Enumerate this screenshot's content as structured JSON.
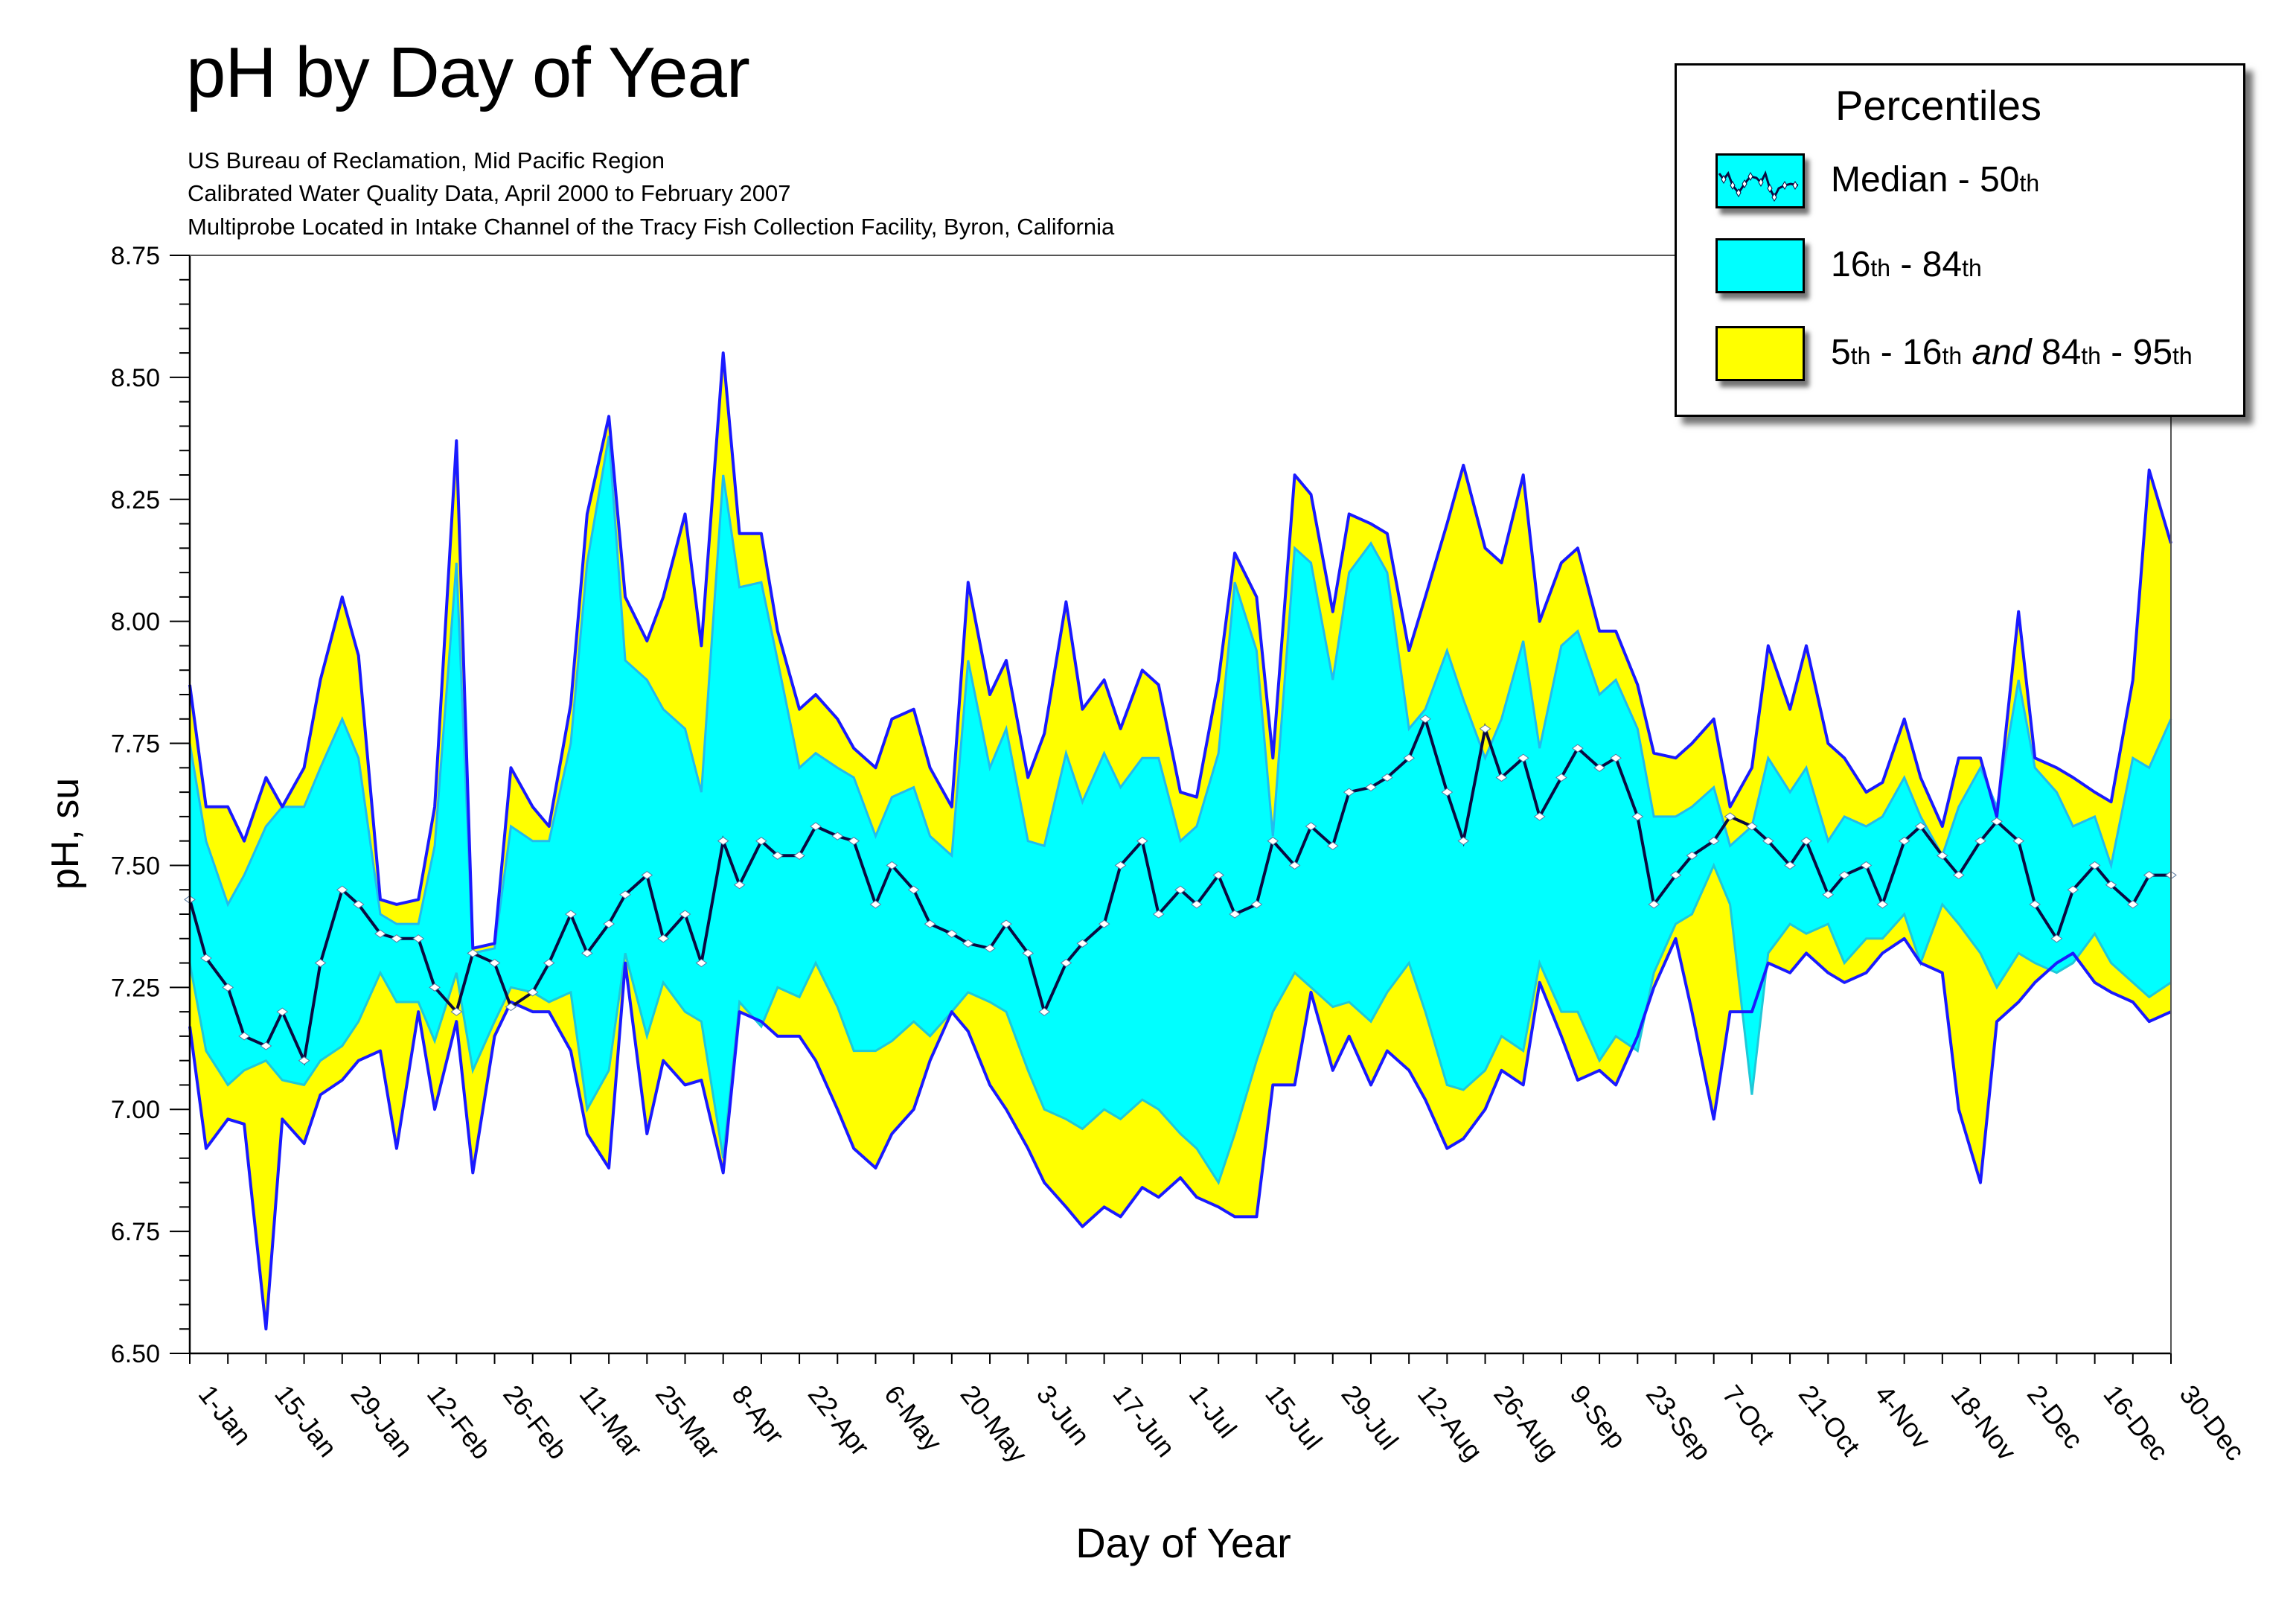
{
  "header": {
    "title": "pH by Day of Year",
    "subtitles": [
      "US Bureau of Reclamation, Mid Pacific Region",
      "Calibrated Water Quality Data, April 2000 to February 2007",
      "Multiprobe Located in Intake Channel of the Tracy Fish Collection Facility, Byron, California"
    ]
  },
  "legend": {
    "title": "Percentiles",
    "items": [
      {
        "name": "median",
        "label_parts": [
          "Median - 50",
          "th"
        ],
        "swatch": "median-line-on-cyan"
      },
      {
        "name": "band-16-84",
        "label_parts": [
          "16",
          "th",
          " - 84",
          "th"
        ],
        "swatch": "cyan"
      },
      {
        "name": "band-5-95",
        "label_parts": [
          "5",
          "th",
          " - 16",
          "th",
          " and ",
          "84",
          "th",
          " - 95",
          "th"
        ],
        "swatch": "yellow"
      }
    ]
  },
  "colors": {
    "band_inner": "#00ffff",
    "band_outer": "#ffff00",
    "band_inner_edge": "#22bbee",
    "outline": "#1a1aff",
    "median_line": "#0a0a40",
    "median_marker": "#ffffff",
    "axis": "#000000"
  },
  "chart_data": {
    "type": "area",
    "title": "pH by Day of Year",
    "xlabel": "Day of Year",
    "ylabel": "pH, su",
    "ylim": [
      6.5,
      8.75
    ],
    "xlim": [
      1,
      365
    ],
    "yticks": [
      6.5,
      6.75,
      7.0,
      7.25,
      7.5,
      7.75,
      8.0,
      8.25,
      8.5,
      8.75
    ],
    "ytick_labels": [
      "6.50",
      "6.75",
      "7.00",
      "7.25",
      "7.50",
      "7.75",
      "8.00",
      "8.25",
      "8.50",
      "8.75"
    ],
    "y_minor_step": 0.05,
    "xticks": [
      1,
      15,
      29,
      43,
      57,
      71,
      85,
      99,
      113,
      127,
      141,
      155,
      169,
      183,
      197,
      211,
      225,
      239,
      253,
      267,
      281,
      295,
      309,
      323,
      337,
      351,
      365
    ],
    "xtick_labels": [
      "1-Jan",
      "15-Jan",
      "29-Jan",
      "12-Feb",
      "26-Feb",
      "11-Mar",
      "25-Mar",
      "8-Apr",
      "22-Apr",
      "6-May",
      "20-May",
      "3-Jun",
      "17-Jun",
      "1-Jul",
      "15-Jul",
      "29-Jul",
      "12-Aug",
      "26-Aug",
      "9-Sep",
      "23-Sep",
      "7-Oct",
      "21-Oct",
      "4-Nov",
      "18-Nov",
      "2-Dec",
      "16-Dec",
      "30-Dec"
    ],
    "x_minor_step": 7,
    "grid": false,
    "legend_position": "top-right",
    "x": [
      1,
      4,
      8,
      11,
      15,
      18,
      22,
      25,
      29,
      32,
      36,
      39,
      43,
      46,
      50,
      53,
      57,
      60,
      64,
      67,
      71,
      74,
      78,
      81,
      85,
      88,
      92,
      95,
      99,
      102,
      106,
      109,
      113,
      116,
      120,
      123,
      127,
      130,
      134,
      137,
      141,
      144,
      148,
      151,
      155,
      158,
      162,
      165,
      169,
      172,
      176,
      179,
      183,
      186,
      190,
      193,
      197,
      200,
      204,
      207,
      211,
      214,
      218,
      221,
      225,
      228,
      232,
      235,
      239,
      242,
      246,
      249,
      253,
      256,
      260,
      263,
      267,
      270,
      274,
      277,
      281,
      284,
      288,
      291,
      295,
      298,
      302,
      305,
      309,
      312,
      316,
      319,
      323,
      326,
      330,
      333,
      337,
      340,
      344,
      347,
      351,
      354,
      358,
      361,
      365
    ],
    "series": [
      {
        "name": "95th percentile",
        "values": [
          7.87,
          7.62,
          7.62,
          7.55,
          7.68,
          7.62,
          7.7,
          7.88,
          8.05,
          7.93,
          7.43,
          7.42,
          7.43,
          7.62,
          8.37,
          7.33,
          7.34,
          7.7,
          7.62,
          7.58,
          7.83,
          8.22,
          8.42,
          8.05,
          7.96,
          8.05,
          8.22,
          7.95,
          8.55,
          8.18,
          8.18,
          7.98,
          7.82,
          7.85,
          7.8,
          7.74,
          7.7,
          7.8,
          7.82,
          7.7,
          7.62,
          8.08,
          7.85,
          7.92,
          7.68,
          7.77,
          8.04,
          7.82,
          7.88,
          7.78,
          7.9,
          7.87,
          7.65,
          7.64,
          7.88,
          8.14,
          8.05,
          7.72,
          8.3,
          8.26,
          8.02,
          8.22,
          8.2,
          8.18,
          7.94,
          8.05,
          8.2,
          8.32,
          8.15,
          8.12,
          8.3,
          8.0,
          8.12,
          8.15,
          7.98,
          7.98,
          7.87,
          7.73,
          7.72,
          7.75,
          7.8,
          7.62,
          7.7,
          7.95,
          7.82,
          7.95,
          7.75,
          7.72,
          7.65,
          7.67,
          7.8,
          7.68,
          7.58,
          7.72,
          7.72,
          7.6,
          8.02,
          7.72,
          7.7,
          7.68,
          7.65,
          7.63,
          7.88,
          8.31,
          8.16
        ]
      },
      {
        "name": "84th percentile",
        "values": [
          7.75,
          7.55,
          7.42,
          7.48,
          7.58,
          7.62,
          7.62,
          7.7,
          7.8,
          7.72,
          7.4,
          7.38,
          7.38,
          7.54,
          8.12,
          7.32,
          7.33,
          7.58,
          7.55,
          7.55,
          7.75,
          8.12,
          8.38,
          7.92,
          7.88,
          7.82,
          7.78,
          7.65,
          8.3,
          8.07,
          8.08,
          7.92,
          7.7,
          7.73,
          7.7,
          7.68,
          7.56,
          7.64,
          7.66,
          7.56,
          7.52,
          7.92,
          7.7,
          7.78,
          7.55,
          7.54,
          7.73,
          7.63,
          7.73,
          7.66,
          7.72,
          7.72,
          7.55,
          7.58,
          7.73,
          8.08,
          7.94,
          7.56,
          8.15,
          8.12,
          7.88,
          8.1,
          8.16,
          8.1,
          7.78,
          7.82,
          7.94,
          7.84,
          7.72,
          7.8,
          7.96,
          7.74,
          7.95,
          7.98,
          7.85,
          7.88,
          7.78,
          7.6,
          7.6,
          7.62,
          7.66,
          7.54,
          7.58,
          7.72,
          7.65,
          7.7,
          7.55,
          7.6,
          7.58,
          7.6,
          7.68,
          7.6,
          7.52,
          7.62,
          7.7,
          7.62,
          7.88,
          7.7,
          7.65,
          7.58,
          7.6,
          7.5,
          7.72,
          7.7,
          7.8
        ]
      },
      {
        "name": "Median - 50th percentile",
        "values": [
          7.43,
          7.31,
          7.25,
          7.15,
          7.13,
          7.2,
          7.1,
          7.3,
          7.45,
          7.42,
          7.36,
          7.35,
          7.35,
          7.25,
          7.2,
          7.32,
          7.3,
          7.21,
          7.24,
          7.3,
          7.4,
          7.32,
          7.38,
          7.44,
          7.48,
          7.35,
          7.4,
          7.3,
          7.55,
          7.46,
          7.55,
          7.52,
          7.52,
          7.58,
          7.56,
          7.55,
          7.42,
          7.5,
          7.45,
          7.38,
          7.36,
          7.34,
          7.33,
          7.38,
          7.32,
          7.2,
          7.3,
          7.34,
          7.38,
          7.5,
          7.55,
          7.4,
          7.45,
          7.42,
          7.48,
          7.4,
          7.42,
          7.55,
          7.5,
          7.58,
          7.54,
          7.65,
          7.66,
          7.68,
          7.72,
          7.8,
          7.65,
          7.55,
          7.78,
          7.68,
          7.72,
          7.6,
          7.68,
          7.74,
          7.7,
          7.72,
          7.6,
          7.42,
          7.48,
          7.52,
          7.55,
          7.6,
          7.58,
          7.55,
          7.5,
          7.55,
          7.44,
          7.48,
          7.5,
          7.42,
          7.55,
          7.58,
          7.52,
          7.48,
          7.55,
          7.59,
          7.55,
          7.42,
          7.35,
          7.45,
          7.5,
          7.46,
          7.42,
          7.48,
          7.48
        ]
      },
      {
        "name": "16th percentile",
        "values": [
          7.3,
          7.12,
          7.05,
          7.08,
          7.1,
          7.06,
          7.05,
          7.1,
          7.13,
          7.18,
          7.28,
          7.22,
          7.22,
          7.14,
          7.28,
          7.08,
          7.18,
          7.25,
          7.24,
          7.22,
          7.24,
          7.0,
          7.08,
          7.32,
          7.15,
          7.26,
          7.2,
          7.18,
          6.9,
          7.22,
          7.17,
          7.25,
          7.23,
          7.3,
          7.21,
          7.12,
          7.12,
          7.14,
          7.18,
          7.15,
          7.2,
          7.24,
          7.22,
          7.2,
          7.08,
          7.0,
          6.98,
          6.96,
          7.0,
          6.98,
          7.02,
          7.0,
          6.95,
          6.92,
          6.85,
          6.95,
          7.1,
          7.2,
          7.28,
          7.25,
          7.21,
          7.22,
          7.18,
          7.24,
          7.3,
          7.2,
          7.05,
          7.04,
          7.08,
          7.15,
          7.12,
          7.3,
          7.2,
          7.2,
          7.1,
          7.15,
          7.12,
          7.28,
          7.38,
          7.4,
          7.5,
          7.42,
          7.03,
          7.32,
          7.38,
          7.36,
          7.38,
          7.3,
          7.35,
          7.35,
          7.4,
          7.3,
          7.42,
          7.38,
          7.32,
          7.25,
          7.32,
          7.3,
          7.28,
          7.3,
          7.36,
          7.3,
          7.26,
          7.23,
          7.26
        ]
      },
      {
        "name": "5th percentile",
        "values": [
          7.17,
          6.92,
          6.98,
          6.97,
          6.55,
          6.98,
          6.93,
          7.03,
          7.06,
          7.1,
          7.12,
          6.92,
          7.2,
          7.0,
          7.18,
          6.87,
          7.15,
          7.22,
          7.2,
          7.2,
          7.12,
          6.95,
          6.88,
          7.3,
          6.95,
          7.1,
          7.05,
          7.06,
          6.87,
          7.2,
          7.18,
          7.15,
          7.15,
          7.1,
          7.0,
          6.92,
          6.88,
          6.95,
          7.0,
          7.1,
          7.2,
          7.16,
          7.05,
          7.0,
          6.92,
          6.85,
          6.8,
          6.76,
          6.8,
          6.78,
          6.84,
          6.82,
          6.86,
          6.82,
          6.8,
          6.78,
          6.78,
          7.05,
          7.05,
          7.24,
          7.08,
          7.15,
          7.05,
          7.12,
          7.08,
          7.02,
          6.92,
          6.94,
          7.0,
          7.08,
          7.05,
          7.26,
          7.15,
          7.06,
          7.08,
          7.05,
          7.15,
          7.25,
          7.35,
          7.2,
          6.98,
          7.2,
          7.2,
          7.3,
          7.28,
          7.32,
          7.28,
          7.26,
          7.28,
          7.32,
          7.35,
          7.3,
          7.28,
          7.0,
          6.85,
          7.18,
          7.22,
          7.26,
          7.3,
          7.32,
          7.26,
          7.24,
          7.22,
          7.18,
          7.2
        ]
      }
    ]
  }
}
